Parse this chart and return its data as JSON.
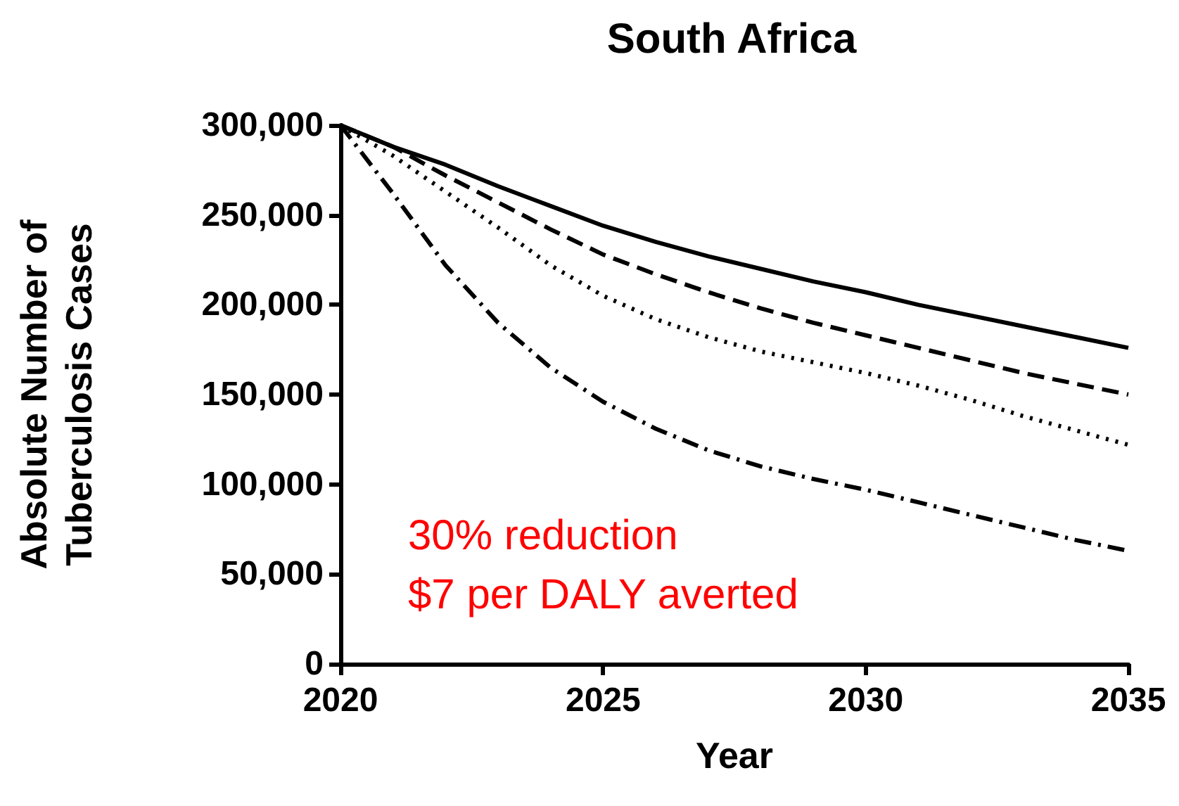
{
  "chart_data": {
    "type": "line",
    "title": "South Africa",
    "xlabel": "Year",
    "ylabel": "Absolute Number of\nTuberculosis Cases",
    "annotations": [
      "30% reduction",
      "$7 per DALY averted"
    ],
    "x": [
      2020,
      2021,
      2022,
      2023,
      2024,
      2025,
      2026,
      2027,
      2028,
      2029,
      2030,
      2031,
      2032,
      2033,
      2034,
      2035
    ],
    "series": [
      {
        "color": "#000000",
        "line_style": "solid",
        "values": [
          300000,
          288000,
          278000,
          266000,
          255000,
          244000,
          235000,
          227000,
          220000,
          213000,
          207000,
          200000,
          194000,
          188000,
          182000,
          176000
        ]
      },
      {
        "color": "#000000",
        "line_style": "dashed",
        "values": [
          300000,
          288000,
          272000,
          257000,
          242000,
          228000,
          217000,
          207000,
          198000,
          190000,
          183000,
          176000,
          169000,
          162000,
          156000,
          150000
        ]
      },
      {
        "color": "#000000",
        "line_style": "dotted",
        "values": [
          300000,
          283000,
          263000,
          243000,
          222000,
          205000,
          192000,
          182000,
          174000,
          168000,
          162000,
          155000,
          147000,
          138000,
          130000,
          122000
        ]
      },
      {
        "color": "#000000",
        "line_style": "dashdot",
        "values": [
          300000,
          262000,
          222000,
          190000,
          165000,
          146000,
          131000,
          119000,
          110000,
          103000,
          97000,
          90000,
          83000,
          76000,
          69000,
          63000
        ]
      }
    ],
    "xlim": [
      2020,
      2035
    ],
    "xticks": [
      2020,
      2025,
      2030,
      2035
    ],
    "ylim": [
      0,
      300000
    ],
    "yticks": [
      0,
      {
        "value": 50000,
        "label": "50,000"
      },
      {
        "value": 100000,
        "label": "100,000"
      },
      {
        "value": 150000,
        "label": "150,000"
      },
      {
        "value": 200000,
        "label": "200,000"
      },
      {
        "value": 250000,
        "label": "250,000"
      },
      {
        "value": 300000,
        "label": "300,000"
      }
    ],
    "grid": false,
    "marker": "none"
  }
}
